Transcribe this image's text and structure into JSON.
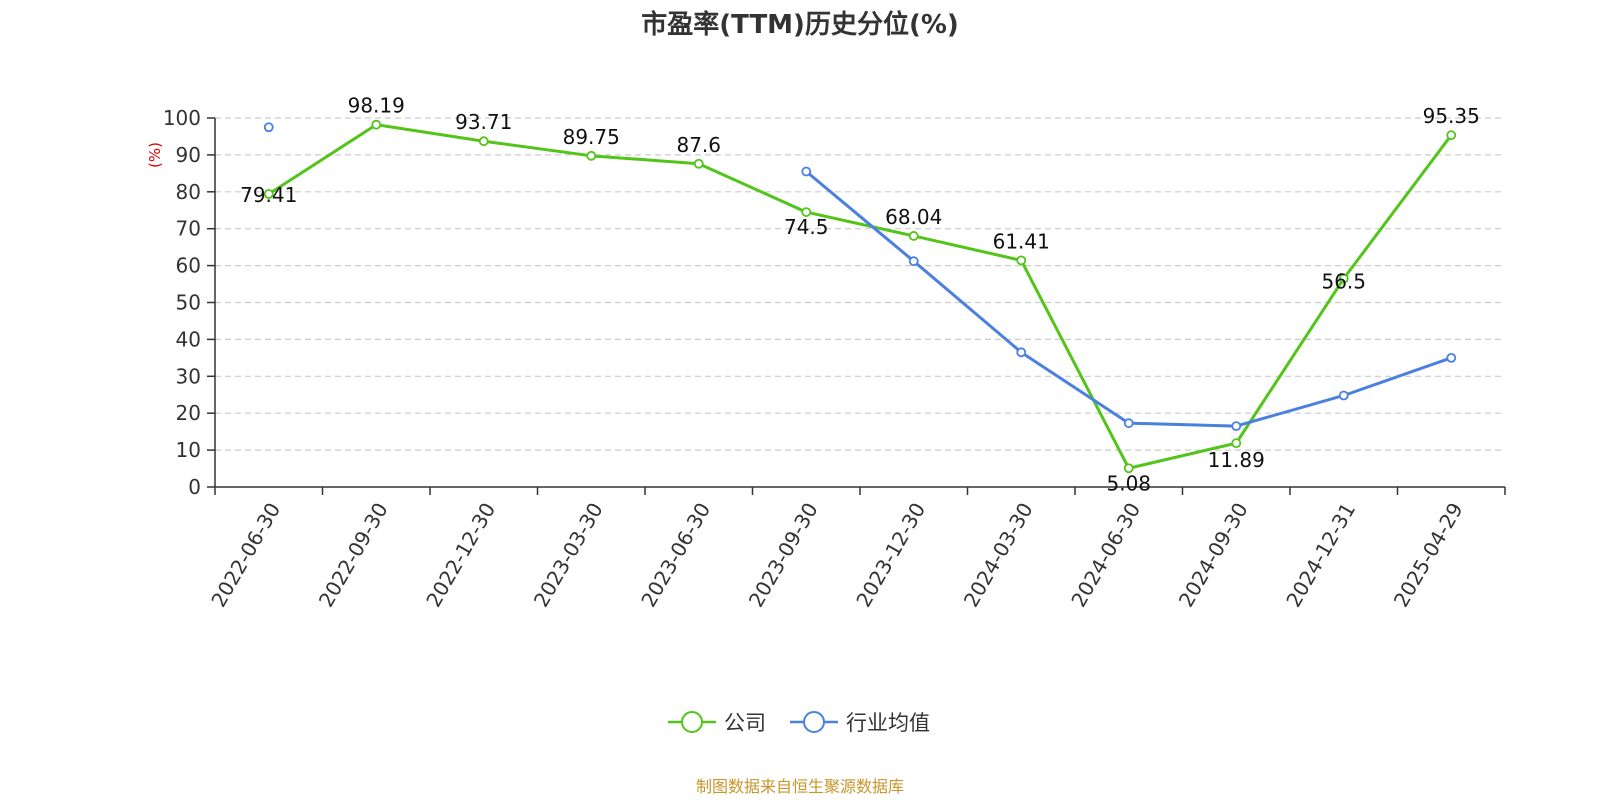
{
  "chart_data": {
    "type": "line",
    "title": "市盈率(TTM)历史分位(%)",
    "ylabel": "(%)",
    "categories": [
      "2022-06-30",
      "2022-09-30",
      "2022-12-30",
      "2023-03-30",
      "2023-06-30",
      "2023-09-30",
      "2023-12-30",
      "2024-03-30",
      "2024-06-30",
      "2024-09-30",
      "2024-12-31",
      "2025-04-29"
    ],
    "ylim": [
      0,
      100
    ],
    "yticks": [
      0,
      10,
      20,
      30,
      40,
      50,
      60,
      70,
      80,
      90,
      100
    ],
    "grid": true,
    "legend_position": "bottom-center",
    "series": [
      {
        "name": "公司",
        "color": "#52c41a",
        "show_labels": true,
        "values": [
          79.41,
          98.19,
          93.71,
          89.75,
          87.6,
          74.5,
          68.04,
          61.41,
          5.08,
          11.89,
          56.5,
          95.35
        ]
      },
      {
        "name": "行业均值",
        "color": "#4a80e0",
        "show_labels": false,
        "values": [
          97.5,
          null,
          null,
          null,
          null,
          85.5,
          61.2,
          36.5,
          17.3,
          16.5,
          24.8,
          35.0
        ]
      }
    ]
  },
  "source_text": "制图数据来自恒生聚源数据库",
  "colors": {
    "axis": "#333333",
    "grid": "#cccccc",
    "unit_label": "#e00000",
    "source_text": "#c8962a"
  }
}
